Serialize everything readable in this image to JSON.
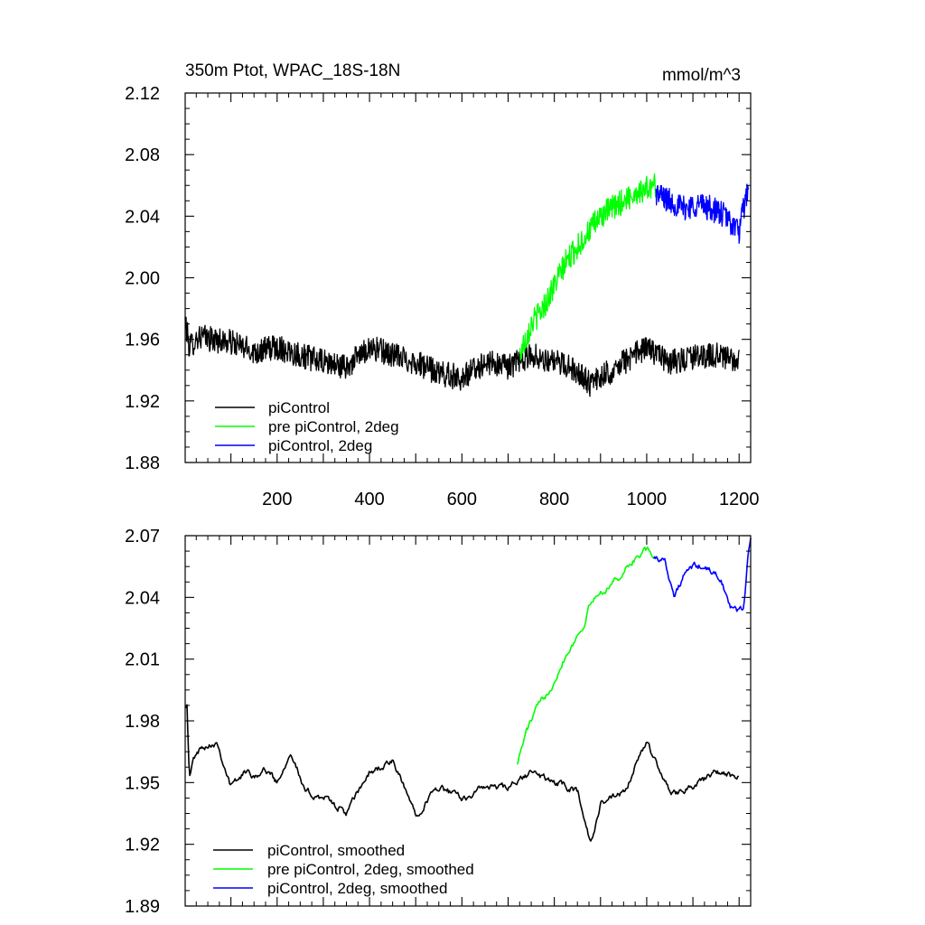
{
  "chart_data": [
    {
      "type": "line",
      "title": "350m Ptot, WPAC_18S-18N",
      "units": "mmol/m^3",
      "xlabel": "",
      "ylabel": "",
      "xlim": [
        1,
        1225
      ],
      "ylim": [
        1.88,
        2.12
      ],
      "xticks": [
        "200",
        "400",
        "600",
        "800",
        "1000",
        "1200"
      ],
      "yticks": [
        "1.88",
        "1.92",
        "1.96",
        "2.00",
        "2.04",
        "2.08",
        "2.12"
      ],
      "legend_position": "bottom-left",
      "series": [
        {
          "name": "piControl",
          "color": "#000000",
          "kind": "raw",
          "x": [
            1,
            10,
            30,
            60,
            100,
            150,
            200,
            250,
            300,
            350,
            400,
            450,
            500,
            550,
            600,
            650,
            700,
            750,
            800,
            850,
            880,
            900,
            950,
            1000,
            1050,
            1100,
            1150,
            1200
          ],
          "values": [
            1.972,
            1.955,
            1.962,
            1.96,
            1.958,
            1.952,
            1.955,
            1.95,
            1.945,
            1.942,
            1.955,
            1.95,
            1.945,
            1.938,
            1.935,
            1.945,
            1.942,
            1.95,
            1.945,
            1.94,
            1.93,
            1.935,
            1.945,
            1.955,
            1.945,
            1.948,
            1.95,
            1.945
          ]
        },
        {
          "name": "pre piControl, 2deg",
          "color": "#00ff00",
          "kind": "raw",
          "x": [
            725,
            750,
            775,
            800,
            825,
            850,
            875,
            900,
            925,
            950,
            975,
            1000,
            1020
          ],
          "values": [
            1.95,
            1.97,
            1.98,
            1.995,
            2.01,
            2.02,
            2.03,
            2.04,
            2.045,
            2.05,
            2.055,
            2.058,
            2.06
          ]
        },
        {
          "name": "piControl, 2deg",
          "color": "#0000ff",
          "kind": "raw",
          "x": [
            1020,
            1050,
            1080,
            1110,
            1140,
            1170,
            1200,
            1220
          ],
          "values": [
            2.055,
            2.05,
            2.045,
            2.048,
            2.045,
            2.04,
            2.03,
            2.06
          ]
        }
      ]
    },
    {
      "type": "line",
      "title": "",
      "xlabel": "",
      "ylabel": "",
      "xlim": [
        1,
        1225
      ],
      "ylim": [
        1.89,
        2.07
      ],
      "yticks": [
        "1.89",
        "1.92",
        "1.95",
        "1.98",
        "2.01",
        "2.04",
        "2.07"
      ],
      "legend_position": "bottom-left",
      "series": [
        {
          "name": "piControl, smoothed",
          "color": "#000000",
          "kind": "smoothed",
          "x": [
            1,
            5,
            10,
            20,
            40,
            70,
            100,
            130,
            150,
            180,
            200,
            230,
            260,
            300,
            350,
            400,
            450,
            500,
            550,
            600,
            650,
            700,
            750,
            800,
            850,
            880,
            900,
            950,
            1000,
            1050,
            1100,
            1150,
            1200
          ],
          "values": [
            1.988,
            1.989,
            1.952,
            1.962,
            1.968,
            1.97,
            1.948,
            1.955,
            1.954,
            1.956,
            1.95,
            1.966,
            1.945,
            1.943,
            1.935,
            1.955,
            1.96,
            1.935,
            1.948,
            1.942,
            1.948,
            1.947,
            1.955,
            1.95,
            1.946,
            1.92,
            1.94,
            1.944,
            1.97,
            1.945,
            1.948,
            1.955,
            1.952
          ]
        },
        {
          "name": "pre piControl, 2deg, smoothed",
          "color": "#00ff00",
          "kind": "smoothed",
          "x": [
            720,
            740,
            760,
            780,
            800,
            820,
            840,
            860,
            880,
            900,
            920,
            940,
            960,
            980,
            1000,
            1015
          ],
          "values": [
            1.96,
            1.975,
            1.985,
            1.992,
            2.0,
            2.01,
            2.018,
            2.025,
            2.038,
            2.042,
            2.046,
            2.05,
            2.055,
            2.06,
            2.063,
            2.06
          ]
        },
        {
          "name": "piControl, 2deg, smoothed",
          "color": "#0000ff",
          "kind": "smoothed",
          "x": [
            1015,
            1040,
            1060,
            1080,
            1100,
            1120,
            1140,
            1160,
            1180,
            1200,
            1210,
            1220,
            1225
          ],
          "values": [
            2.06,
            2.058,
            2.04,
            2.05,
            2.055,
            2.055,
            2.052,
            2.05,
            2.035,
            2.033,
            2.035,
            2.062,
            2.068
          ]
        }
      ]
    }
  ]
}
